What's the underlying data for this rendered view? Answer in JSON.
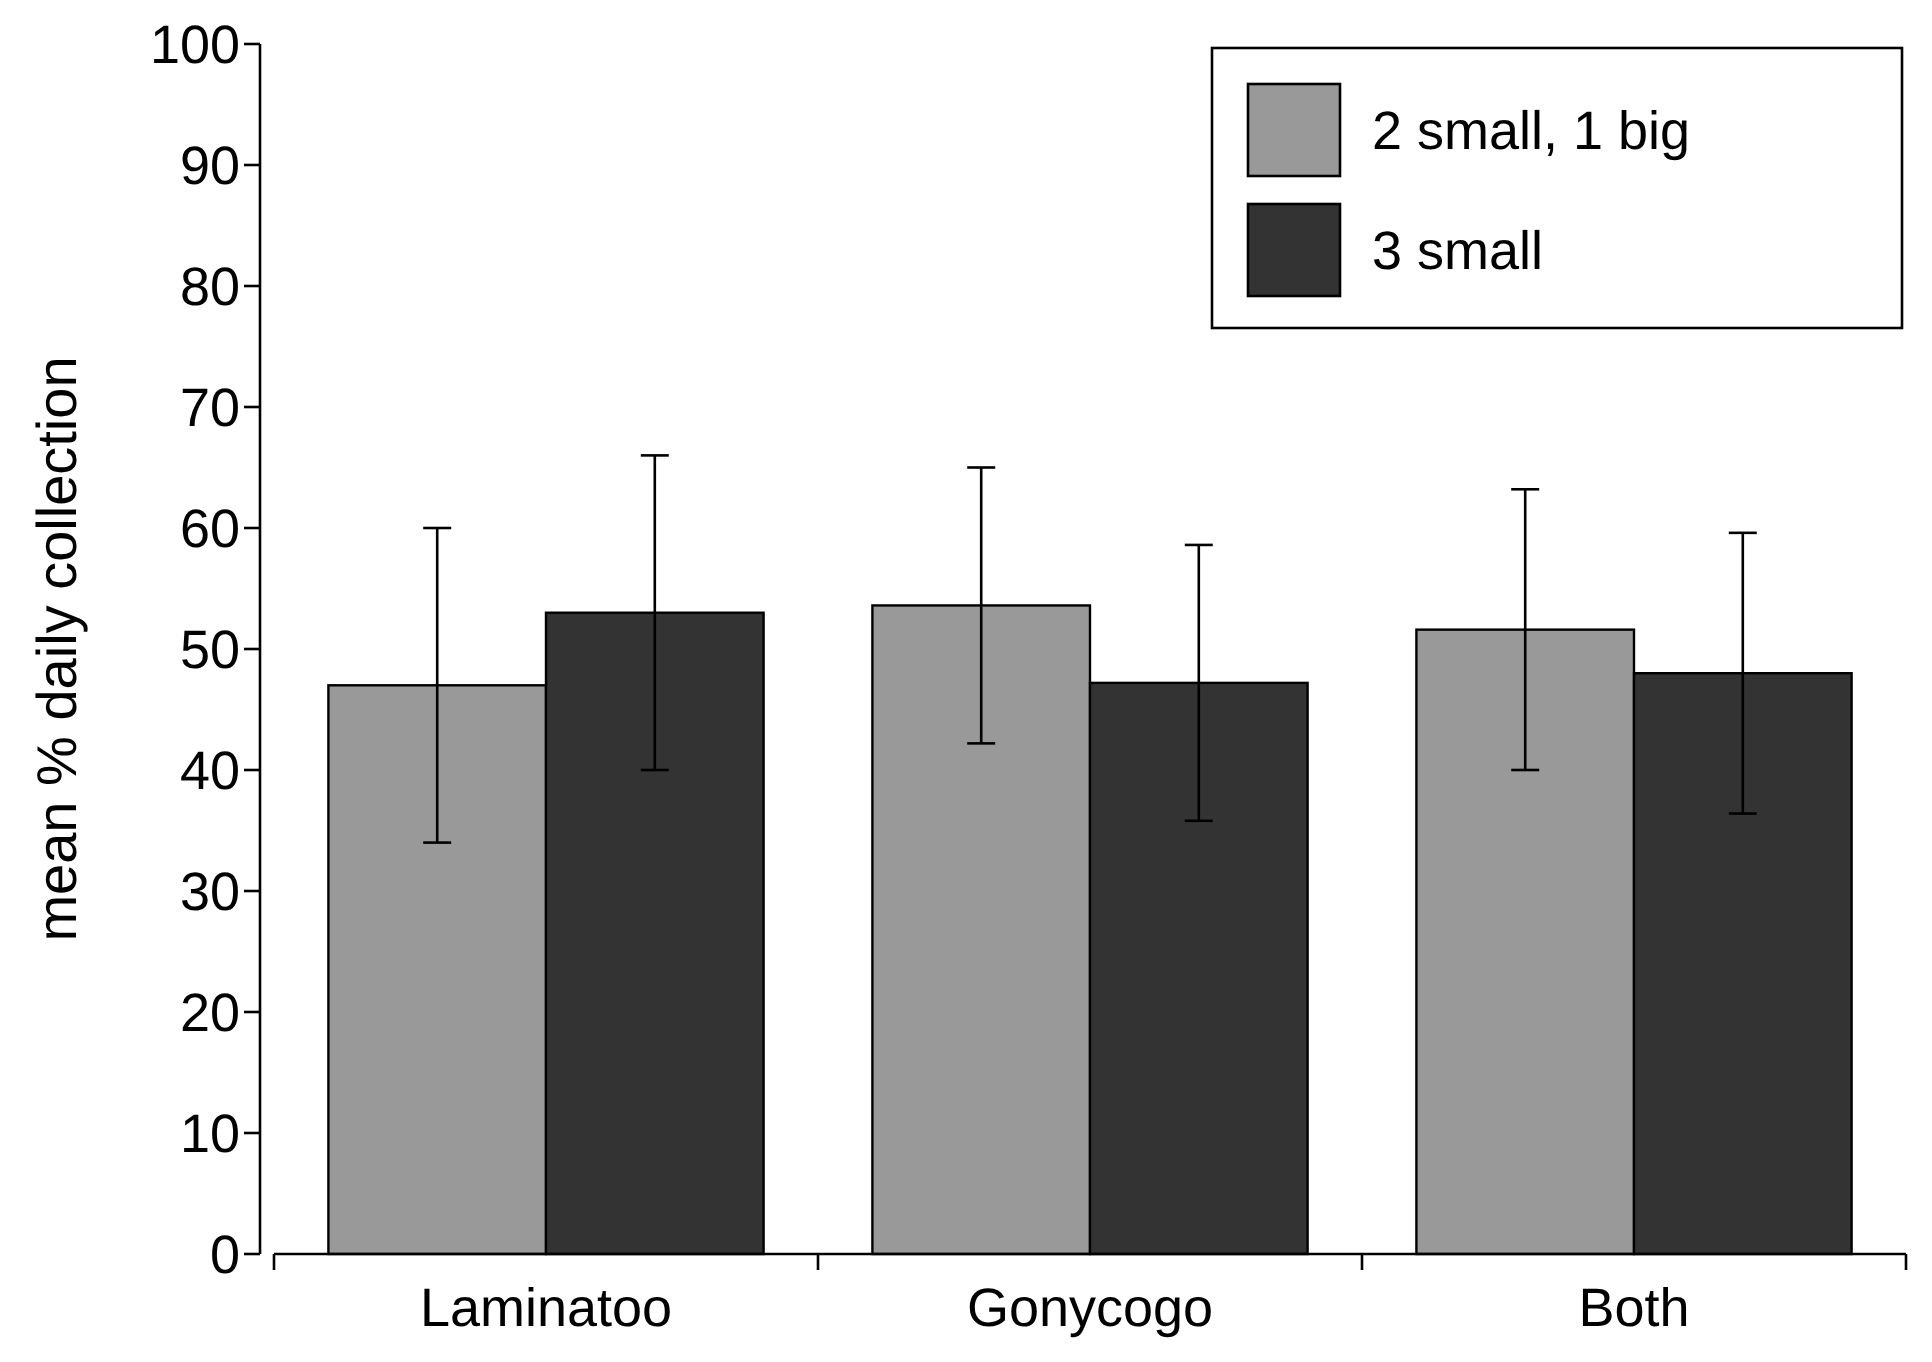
{
  "chart_data": {
    "type": "bar",
    "ylabel": "mean % daily collection",
    "categories": [
      "Laminatoo",
      "Gonycogo",
      "Both"
    ],
    "series": [
      {
        "name": "2 small, 1 big",
        "color": "#999999",
        "values": [
          47,
          53.6,
          51.6
        ],
        "errors": [
          13,
          11.4,
          11.6
        ]
      },
      {
        "name": "3 small",
        "color": "#333333",
        "values": [
          53,
          47.2,
          48
        ],
        "errors": [
          13,
          11.4,
          11.6
        ]
      }
    ],
    "ylim": [
      0,
      100
    ],
    "yticks": [
      0,
      10,
      20,
      30,
      40,
      50,
      60,
      70,
      80,
      90,
      100
    ],
    "grid": false,
    "legend": "top right"
  }
}
